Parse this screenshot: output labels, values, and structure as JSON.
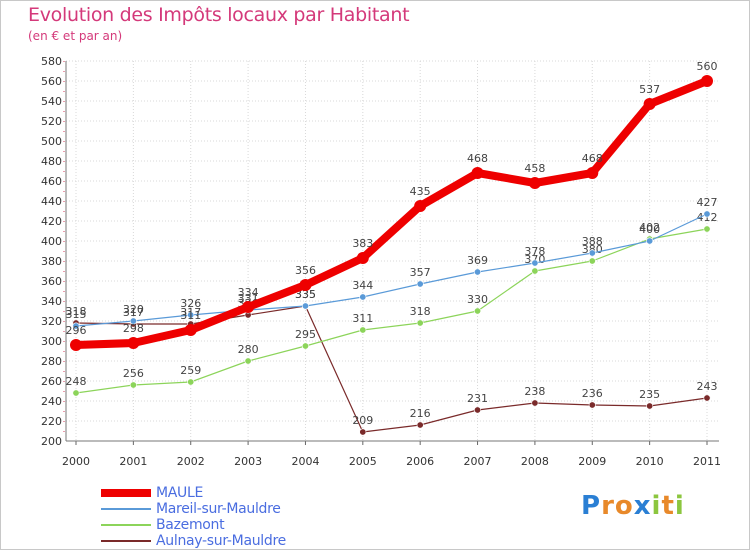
{
  "title": "Evolution des Impôts locaux par Habitant",
  "subtitle": "(en € et par an)",
  "logo": {
    "text": "Proxiti",
    "letters": [
      "P",
      "r",
      "o",
      "x",
      "i",
      "t",
      "i"
    ],
    "colors": [
      "#2a7fd4",
      "#e8892a",
      "#e8892a",
      "#2a7fd4",
      "#8cc63f",
      "#e8892a",
      "#8cc63f"
    ]
  },
  "chart_data": {
    "type": "line",
    "title": "Evolution des Impôts locaux par Habitant",
    "subtitle": "(en € et par an)",
    "xlabel": "",
    "ylabel": "",
    "ylim": [
      200,
      580
    ],
    "ytick_step": 20,
    "grid": true,
    "legend_position": "bottom-left",
    "categories": [
      "2000",
      "2001",
      "2002",
      "2003",
      "2004",
      "2005",
      "2006",
      "2007",
      "2008",
      "2009",
      "2010",
      "2011"
    ],
    "series": [
      {
        "name": "Aulnay-sur-Mauldre",
        "color": "#7a2a2a",
        "thick": false,
        "values": [
          318,
          317,
          317,
          326,
          335,
          209,
          216,
          231,
          238,
          236,
          235,
          243
        ],
        "labels": [
          "318",
          "317",
          "317",
          "326",
          "335",
          "209",
          "216",
          "231",
          "238",
          "236",
          "235",
          "243"
        ]
      },
      {
        "name": "Bazemont",
        "color": "#8cd45a",
        "thick": false,
        "values": [
          248,
          256,
          259,
          280,
          295,
          311,
          318,
          330,
          370,
          380,
          402,
          412
        ],
        "labels": [
          "248",
          "256",
          "259",
          "280",
          "295",
          "311",
          "318",
          "330",
          "370",
          "380",
          "402",
          "412"
        ]
      },
      {
        "name": "Mareil-sur-Mauldre",
        "color": "#5a9ad8",
        "thick": false,
        "values": [
          315,
          320,
          326,
          331,
          335,
          344,
          357,
          369,
          378,
          388,
          400,
          427
        ],
        "labels": [
          "315",
          "320",
          "326",
          "331",
          "335",
          "344",
          "357",
          "369",
          "378",
          "388",
          "400",
          "427"
        ]
      },
      {
        "name": "MAULE",
        "color": "#ee0000",
        "thick": true,
        "values": [
          296,
          298,
          311,
          334,
          356,
          383,
          435,
          468,
          458,
          468,
          537,
          560
        ],
        "labels": [
          "296",
          "298",
          "311",
          "334",
          "356",
          "383",
          "435",
          "468",
          "458",
          "468",
          "537",
          "560"
        ]
      }
    ],
    "legend": [
      "MAULE",
      "Mareil-sur-Mauldre",
      "Bazemont",
      "Aulnay-sur-Mauldre"
    ]
  }
}
